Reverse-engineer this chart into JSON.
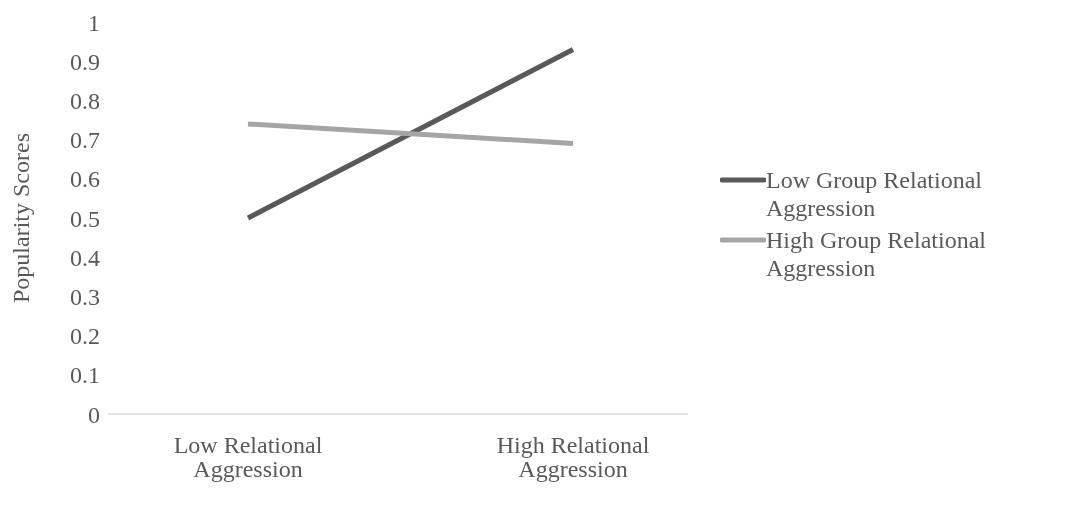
{
  "chart_data": {
    "type": "line",
    "ylabel": "Popularity Scores",
    "categories": [
      "Low Relational Aggression",
      "High Relational Aggression"
    ],
    "series": [
      {
        "name": "Low Group Relational Aggression",
        "color": "#595959",
        "values": [
          0.5,
          0.93
        ]
      },
      {
        "name": "High Group Relational Aggression",
        "color": "#a5a5a5",
        "values": [
          0.74,
          0.69
        ]
      }
    ],
    "ylim": [
      0,
      1
    ],
    "yticks": [
      0,
      0.1,
      0.2,
      0.3,
      0.4,
      0.5,
      0.6,
      0.7,
      0.8,
      0.9,
      1
    ],
    "grid": false,
    "legend": "right",
    "marker": "none",
    "line_style": "solid"
  }
}
